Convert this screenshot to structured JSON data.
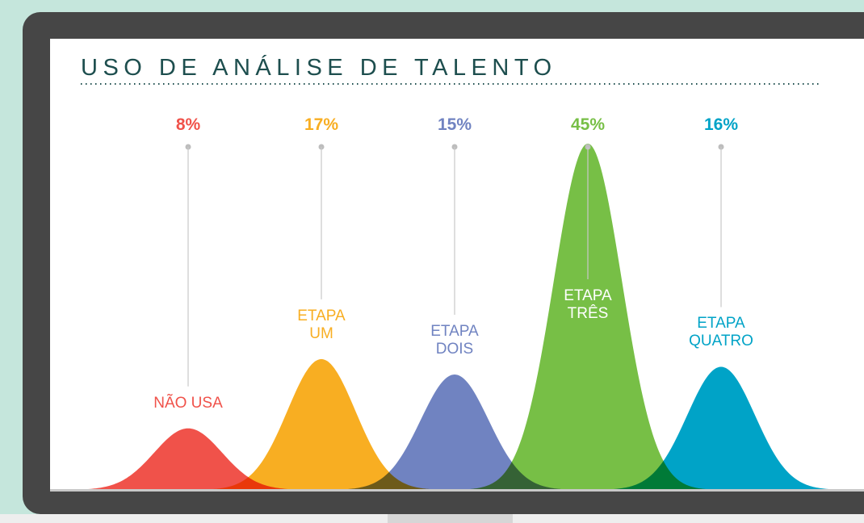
{
  "chart_data": {
    "type": "bell",
    "title": "USO DE ANÁLISE DE TALENTO",
    "categories": [
      "NÃO USA",
      "ETAPA\nUM",
      "ETAPA\nDOIS",
      "ETAPA\nTRÊS",
      "ETAPA\nQUATRO"
    ],
    "values": [
      8,
      17,
      15,
      45,
      16
    ],
    "value_labels": [
      "8%",
      "17%",
      "15%",
      "45%",
      "16%"
    ],
    "colors": [
      "#f0524a",
      "#f8ae22",
      "#7083c1",
      "#77bf46",
      "#00a3c7"
    ]
  }
}
